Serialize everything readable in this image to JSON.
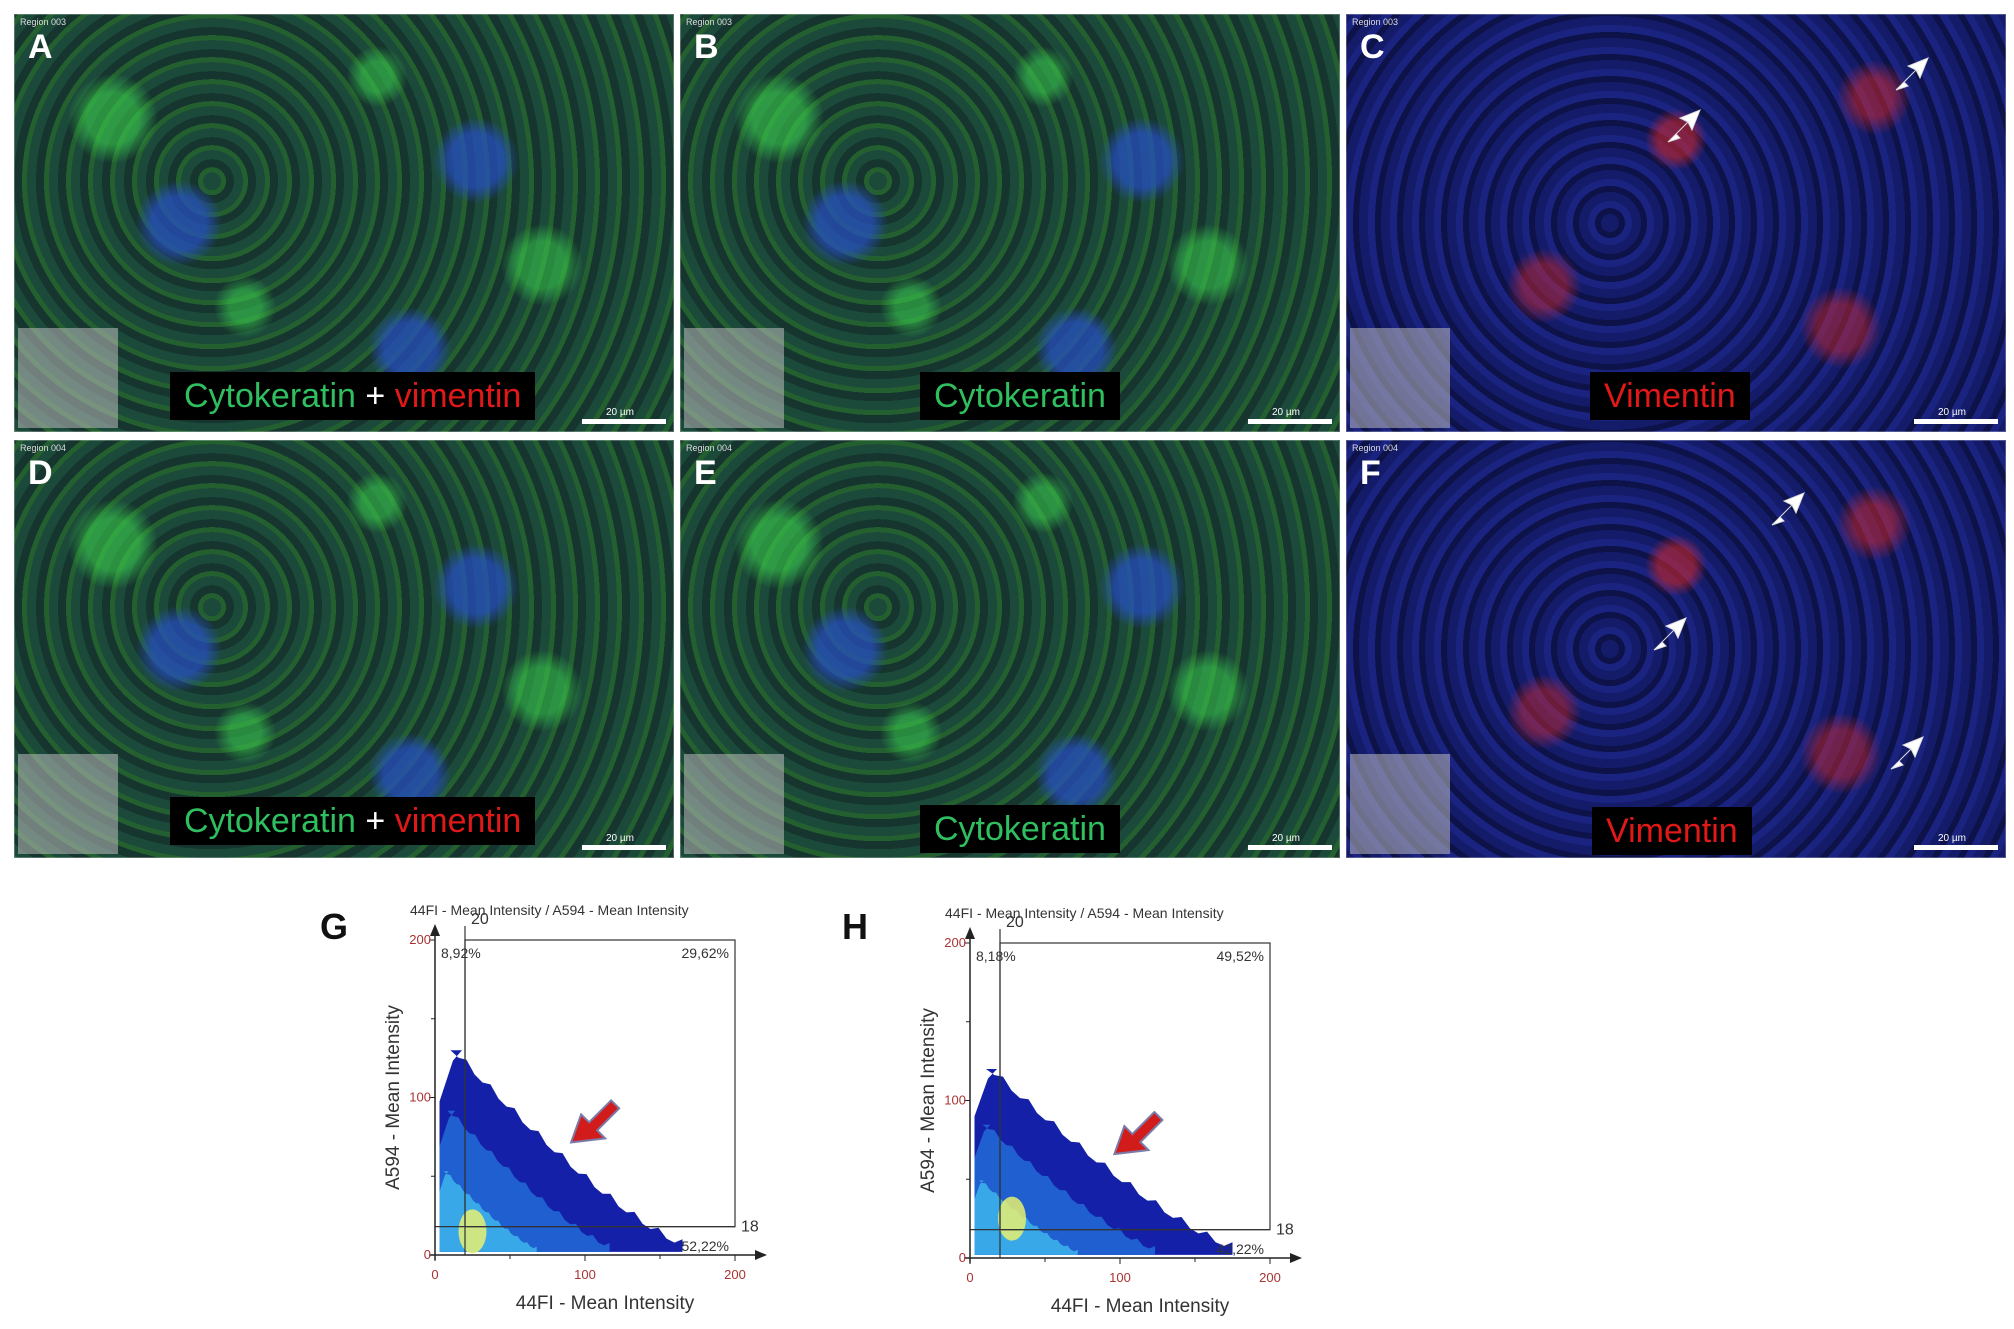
{
  "panels": [
    {
      "letter": "A",
      "region": "Region 003",
      "label_parts": [
        {
          "text": "Cytokeratin",
          "color": "green"
        },
        {
          "text": " + ",
          "color": "white"
        },
        {
          "text": "vimentin",
          "color": "red"
        }
      ],
      "scale": "20 µm"
    },
    {
      "letter": "B",
      "region": "Region 003",
      "label_parts": [
        {
          "text": "Cytokeratin",
          "color": "green"
        }
      ],
      "scale": "20 µm"
    },
    {
      "letter": "C",
      "region": "Region 003",
      "label_parts": [
        {
          "text": "Vimentin",
          "color": "red"
        }
      ],
      "scale": "20 µm"
    },
    {
      "letter": "D",
      "region": "Region 004",
      "label_parts": [
        {
          "text": "Cytokeratin",
          "color": "green"
        },
        {
          "text": " + ",
          "color": "white"
        },
        {
          "text": "vimentin",
          "color": "red"
        }
      ],
      "scale": "20 µm"
    },
    {
      "letter": "E",
      "region": "Region 004",
      "label_parts": [
        {
          "text": "Cytokeratin",
          "color": "green"
        }
      ],
      "scale": "20 µm"
    },
    {
      "letter": "F",
      "region": "Region 004",
      "label_parts": [
        {
          "text": "Vimentin",
          "color": "red"
        }
      ],
      "scale": "20 µm"
    }
  ],
  "colors": {
    "green": "#2fbf5f",
    "red": "#e01818",
    "white": "#ffffff"
  },
  "chart_data": [
    {
      "type": "scatter",
      "panel": "G",
      "title": "44FI - Mean Intensity / A594 - Mean Intensity",
      "xlabel": "44FI - Mean Intensity",
      "ylabel": "A594 - Mean Intensity",
      "xlim": [
        0,
        200
      ],
      "ylim": [
        0,
        200
      ],
      "xticks": [
        0,
        100,
        200
      ],
      "yticks": [
        0,
        100,
        200
      ],
      "gate_x": 20,
      "gate_y": 18,
      "gate_x_label": "20",
      "gate_y_label": "18",
      "quadrants": {
        "upper_left": "8,92%",
        "upper_right": "29,62%",
        "lower_right": "52,22%"
      },
      "density": {
        "max_y": 130,
        "max_x": 165,
        "hotspot": [
          25,
          15
        ]
      }
    },
    {
      "type": "scatter",
      "panel": "H",
      "title": "44FI - Mean Intensity / A594 - Mean Intensity",
      "xlabel": "44FI - Mean Intensity",
      "ylabel": "A594 - Mean Intensity",
      "xlim": [
        0,
        200
      ],
      "ylim": [
        0,
        200
      ],
      "xticks": [
        0,
        100,
        200
      ],
      "yticks": [
        0,
        100,
        200
      ],
      "gate_x": 20,
      "gate_y": 18,
      "gate_x_label": "20",
      "gate_y_label": "18",
      "quadrants": {
        "upper_left": "8,18%",
        "upper_right": "49,52%",
        "lower_right": "42,22%"
      },
      "density": {
        "max_y": 120,
        "max_x": 175,
        "hotspot": [
          28,
          25
        ]
      }
    }
  ]
}
